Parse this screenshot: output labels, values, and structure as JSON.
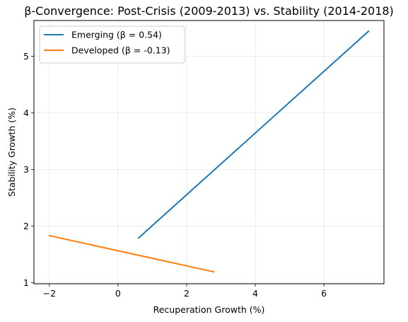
{
  "chart_data": {
    "type": "line",
    "title": "β-Convergence: Post-Crisis (2009-2013) vs. Stability (2014-2018)",
    "xlabel": "Recuperation Growth (%)",
    "ylabel": "Stability Growth (%)",
    "xlim": [
      -2.45,
      7.75
    ],
    "ylim": [
      0.98,
      5.63
    ],
    "xticks": [
      -2,
      0,
      2,
      4,
      6
    ],
    "xtick_labels": [
      "−2",
      "0",
      "2",
      "4",
      "6"
    ],
    "yticks": [
      1,
      2,
      3,
      4,
      5
    ],
    "ytick_labels": [
      "1",
      "2",
      "3",
      "4",
      "5"
    ],
    "grid": true,
    "legend_position": "upper-left",
    "series": [
      {
        "name": "Emerging (β = 0.54)",
        "color": "#1f77b4",
        "x": [
          0.6,
          7.3
        ],
        "y": [
          1.79,
          5.44
        ]
      },
      {
        "name": "Developed (β = -0.13)",
        "color": "#ff7f0e",
        "x": [
          -2.0,
          2.8
        ],
        "y": [
          1.83,
          1.19
        ]
      }
    ]
  }
}
